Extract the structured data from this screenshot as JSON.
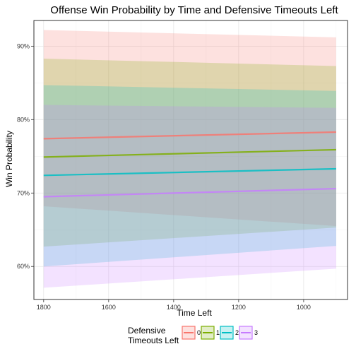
{
  "chart_data": {
    "type": "line",
    "title": "Offense Win Probability by Time and Defensive Timeouts Left",
    "xlabel": "Time Left",
    "ylabel": "Win Probability",
    "x_reversed": true,
    "xlim": [
      1830,
      865
    ],
    "ylim": [
      0.555,
      0.935
    ],
    "x_ticks": [
      1800,
      1600,
      1400,
      1200,
      1000
    ],
    "x_tick_labels": [
      "1800",
      "1600",
      "1400",
      "1200",
      "1000"
    ],
    "y_ticks": [
      0.6,
      0.7,
      0.8,
      0.9
    ],
    "y_tick_labels": [
      "60%",
      "70%",
      "80%",
      "90%"
    ],
    "grid": true,
    "legend": {
      "title_lines": [
        "Defensive",
        "Timeouts Left"
      ],
      "position": "bottom"
    },
    "series": [
      {
        "name": "0",
        "color": "#F8766D",
        "x": [
          1800,
          900
        ],
        "y": [
          0.774,
          0.783
        ],
        "lower": [
          0.682,
          0.655
        ],
        "upper": [
          0.922,
          0.912
        ]
      },
      {
        "name": "1",
        "color": "#7CAE00",
        "x": [
          1800,
          900
        ],
        "y": [
          0.749,
          0.759
        ],
        "lower": [
          0.627,
          0.653
        ],
        "upper": [
          0.883,
          0.873
        ]
      },
      {
        "name": "2",
        "color": "#00BFC4",
        "x": [
          1800,
          900
        ],
        "y": [
          0.724,
          0.733
        ],
        "lower": [
          0.6,
          0.628
        ],
        "upper": [
          0.847,
          0.839
        ]
      },
      {
        "name": "3",
        "color": "#C77CFF",
        "x": [
          1800,
          900
        ],
        "y": [
          0.695,
          0.706
        ],
        "lower": [
          0.571,
          0.597
        ],
        "upper": [
          0.82,
          0.816
        ]
      }
    ]
  }
}
